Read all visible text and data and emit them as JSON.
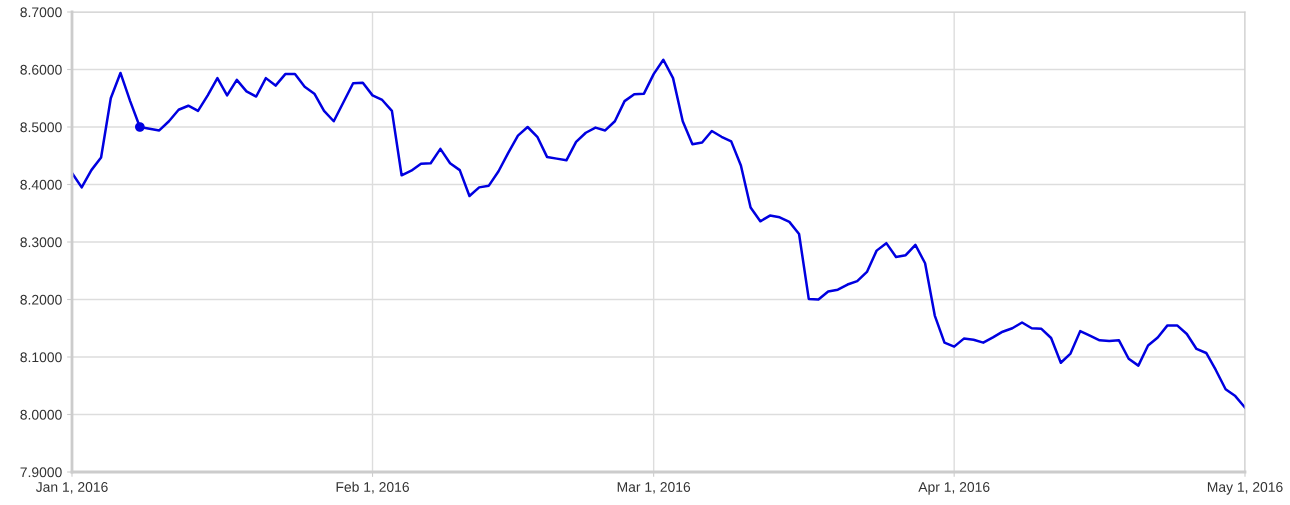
{
  "chart_data": {
    "type": "line",
    "x": [
      "2016-01-01",
      "2016-01-02",
      "2016-01-03",
      "2016-01-04",
      "2016-01-05",
      "2016-01-06",
      "2016-01-07",
      "2016-01-08",
      "2016-01-09",
      "2016-01-10",
      "2016-01-11",
      "2016-01-12",
      "2016-01-13",
      "2016-01-14",
      "2016-01-15",
      "2016-01-16",
      "2016-01-17",
      "2016-01-18",
      "2016-01-19",
      "2016-01-20",
      "2016-01-21",
      "2016-01-22",
      "2016-01-23",
      "2016-01-24",
      "2016-01-25",
      "2016-01-26",
      "2016-01-27",
      "2016-01-28",
      "2016-01-29",
      "2016-01-30",
      "2016-01-31",
      "2016-02-01",
      "2016-02-02",
      "2016-02-03",
      "2016-02-04",
      "2016-02-05",
      "2016-02-06",
      "2016-02-07",
      "2016-02-08",
      "2016-02-09",
      "2016-02-10",
      "2016-02-11",
      "2016-02-12",
      "2016-02-13",
      "2016-02-14",
      "2016-02-15",
      "2016-02-16",
      "2016-02-17",
      "2016-02-18",
      "2016-02-19",
      "2016-02-20",
      "2016-02-21",
      "2016-02-22",
      "2016-02-23",
      "2016-02-24",
      "2016-02-25",
      "2016-02-26",
      "2016-02-27",
      "2016-02-28",
      "2016-02-29",
      "2016-03-01",
      "2016-03-02",
      "2016-03-03",
      "2016-03-04",
      "2016-03-05",
      "2016-03-06",
      "2016-03-07",
      "2016-03-08",
      "2016-03-09",
      "2016-03-10",
      "2016-03-11",
      "2016-03-12",
      "2016-03-13",
      "2016-03-14",
      "2016-03-15",
      "2016-03-16",
      "2016-03-17",
      "2016-03-18",
      "2016-03-19",
      "2016-03-20",
      "2016-03-21",
      "2016-03-22",
      "2016-03-23",
      "2016-03-24",
      "2016-03-25",
      "2016-03-26",
      "2016-03-27",
      "2016-03-28",
      "2016-03-29",
      "2016-03-30",
      "2016-03-31",
      "2016-04-01",
      "2016-04-02",
      "2016-04-03",
      "2016-04-04",
      "2016-04-05",
      "2016-04-06",
      "2016-04-07",
      "2016-04-08",
      "2016-04-09",
      "2016-04-10",
      "2016-04-11",
      "2016-04-12",
      "2016-04-13",
      "2016-04-14",
      "2016-04-15",
      "2016-04-16",
      "2016-04-17",
      "2016-04-18",
      "2016-04-19",
      "2016-04-20",
      "2016-04-21",
      "2016-04-22",
      "2016-04-23",
      "2016-04-24",
      "2016-04-25",
      "2016-04-26",
      "2016-04-27",
      "2016-04-28",
      "2016-04-29",
      "2016-04-30",
      "2016-05-01"
    ],
    "series": [
      {
        "color": "#0000e0",
        "values": [
          8.42,
          8.395,
          8.425,
          8.447,
          8.55,
          8.594,
          8.545,
          8.5,
          8.497,
          8.494,
          8.51,
          8.53,
          8.537,
          8.528,
          8.555,
          8.585,
          8.555,
          8.582,
          8.562,
          8.553,
          8.585,
          8.572,
          8.592,
          8.592,
          8.57,
          8.558,
          8.528,
          8.51,
          8.543,
          8.576,
          8.577,
          8.555,
          8.547,
          8.528,
          8.416,
          8.424,
          8.436,
          8.437,
          8.462,
          8.437,
          8.425,
          8.38,
          8.395,
          8.398,
          8.423,
          8.455,
          8.485,
          8.5,
          8.483,
          8.448,
          8.445,
          8.442,
          8.474,
          8.49,
          8.499,
          8.494,
          8.51,
          8.545,
          8.557,
          8.558,
          8.592,
          8.617,
          8.585,
          8.51,
          8.47,
          8.473,
          8.493,
          8.483,
          8.475,
          8.433,
          8.36,
          8.336,
          8.346,
          8.343,
          8.335,
          8.314,
          8.201,
          8.2,
          8.214,
          8.217,
          8.226,
          8.232,
          8.248,
          8.285,
          8.298,
          8.274,
          8.277,
          8.295,
          8.263,
          8.172,
          8.125,
          8.118,
          8.132,
          8.13,
          8.125,
          8.134,
          8.144,
          8.15,
          8.16,
          8.15,
          8.149,
          8.133,
          8.09,
          8.106,
          8.145,
          8.137,
          8.129,
          8.128,
          8.129,
          8.097,
          8.085,
          8.12,
          8.134,
          8.155,
          8.155,
          8.14,
          8.114,
          8.107,
          8.077,
          8.044,
          8.032,
          8.012
        ]
      },
      {
        "type": "scatter",
        "color": "#0000e0",
        "marker": "circle",
        "x": [
          "2016-01-08"
        ],
        "values": [
          8.5
        ]
      }
    ],
    "marker": "none",
    "line_style": "solid",
    "xlim": [
      "2016-01-01",
      "2016-05-01"
    ],
    "xticks": [
      {
        "value": "2016-01-01",
        "label": "Jan 1, 2016"
      },
      {
        "value": "2016-02-01",
        "label": "Feb 1, 2016"
      },
      {
        "value": "2016-03-01",
        "label": "Mar 1, 2016"
      },
      {
        "value": "2016-04-01",
        "label": "Apr 1, 2016"
      },
      {
        "value": "2016-05-01",
        "label": "May 1, 2016"
      }
    ],
    "ylim": [
      7.9,
      8.7
    ],
    "yticks": [
      {
        "value": 7.9,
        "label": "7.9000"
      },
      {
        "value": 8.0,
        "label": "8.0000"
      },
      {
        "value": 8.1,
        "label": "8.1000"
      },
      {
        "value": 8.2,
        "label": "8.2000"
      },
      {
        "value": 8.3,
        "label": "8.3000"
      },
      {
        "value": 8.4,
        "label": "8.4000"
      },
      {
        "value": 8.5,
        "label": "8.5000"
      },
      {
        "value": 8.6,
        "label": "8.6000"
      },
      {
        "value": 8.7,
        "label": "8.7000"
      }
    ],
    "grid": true
  }
}
